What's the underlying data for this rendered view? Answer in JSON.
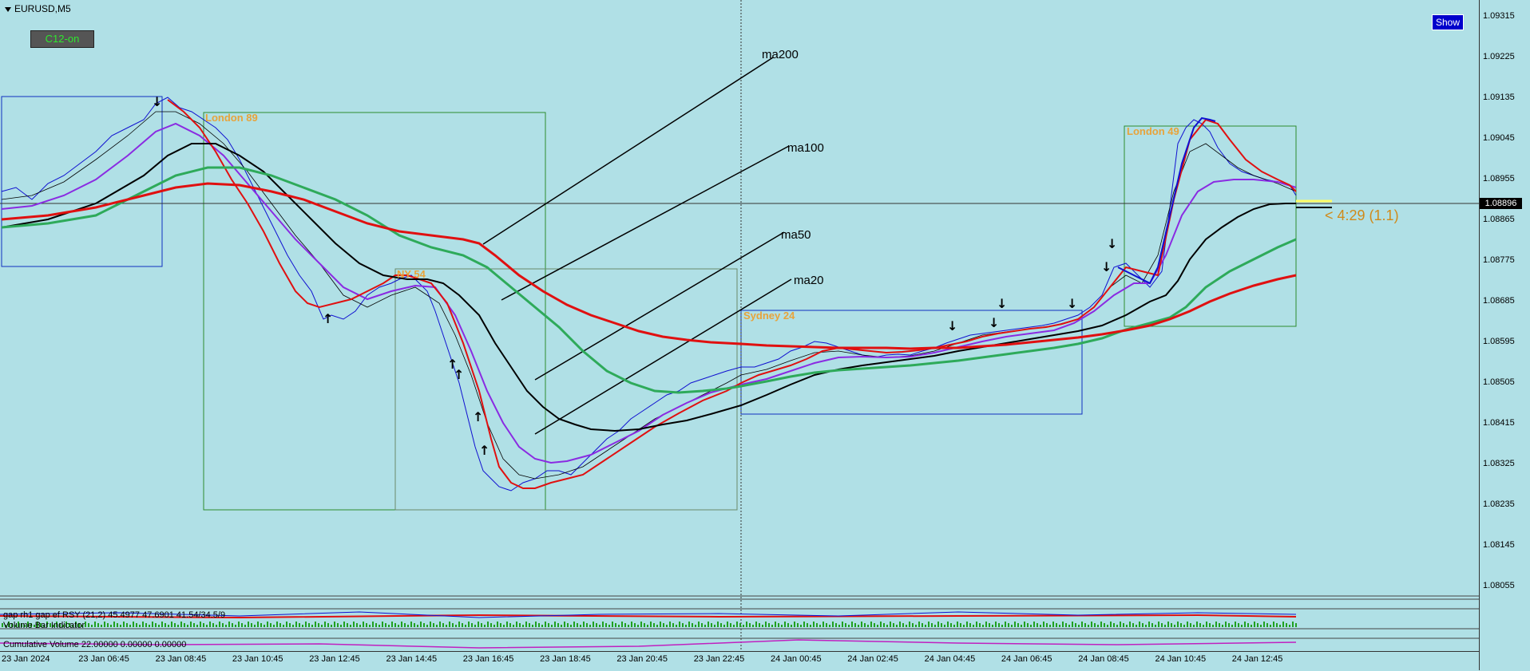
{
  "symbol": "EURUSD,M5",
  "indicator_button": "C12-on",
  "show_button": "Show",
  "price_axis": [
    "1.09315",
    "1.09225",
    "1.09135",
    "1.09045",
    "1.08955",
    "1.08865",
    "1.08775",
    "1.08685",
    "1.08595",
    "1.08505",
    "1.08415",
    "1.08325",
    "1.08235",
    "1.08145",
    "1.08055"
  ],
  "current_price": "1.08896",
  "time_axis": [
    "23 Jan 2024",
    "23 Jan 06:45",
    "23 Jan 08:45",
    "23 Jan 10:45",
    "23 Jan 12:45",
    "23 Jan 14:45",
    "23 Jan 16:45",
    "23 Jan 18:45",
    "23 Jan 20:45",
    "23 Jan 22:45",
    "24 Jan 00:45",
    "24 Jan 02:45",
    "24 Jan 04:45",
    "24 Jan 06:45",
    "24 Jan 08:45",
    "24 Jan 10:45",
    "24 Jan 12:45"
  ],
  "sessions": {
    "london1": "London 89",
    "ny": "NY 54",
    "sydney": "Sydney 24",
    "london2": "London 49"
  },
  "ma_labels": {
    "ma200": "ma200",
    "ma100": "ma100",
    "ma50": "ma50",
    "ma20": "ma20"
  },
  "countdown": "< 4:29 (1.1)",
  "subwindows": {
    "rsi": "gap rh1 gap ef RSY (21,2) 45.4977 47.6901 41.54/34.5/9",
    "vol": "Volume Bar Indicator",
    "cumvol": "Cumulative Volume 22.00000 0.00000 0.00000"
  },
  "colors": {
    "background": "#b0e0e6",
    "ma20": "#e01010",
    "ma50": "#000000",
    "ma100": "#2eaa5a",
    "ma200": "#e01010",
    "price": "#1010d0",
    "ma_fast": "#8a2be2",
    "session_london": "#2e8b2e",
    "session_sydney": "#1030c0",
    "session_label": "#e8a33a"
  }
}
